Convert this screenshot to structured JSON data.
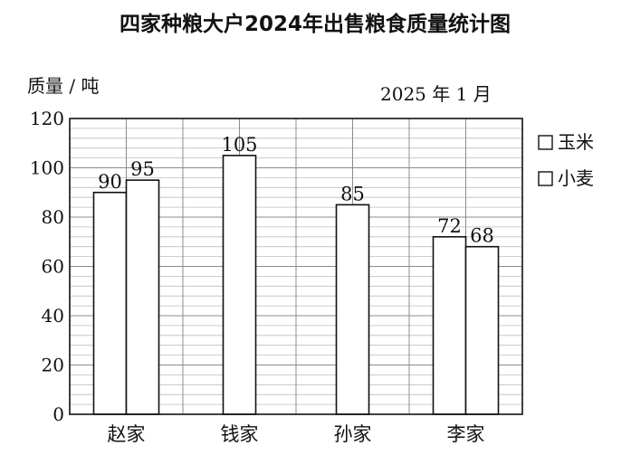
{
  "chart_data": {
    "type": "bar",
    "title": "四家种粮大户2024年出售粮食质量统计图",
    "ylabel": "质量 / 吨",
    "date_note": "2025 年 1 月",
    "categories": [
      "赵家",
      "钱家",
      "孙家",
      "李家"
    ],
    "series": [
      {
        "name": "玉米",
        "values": [
          90,
          null,
          85,
          72
        ]
      },
      {
        "name": "小麦",
        "values": [
          95,
          105,
          null,
          68
        ]
      }
    ],
    "ylim": [
      0,
      120
    ],
    "yticks": [
      0,
      20,
      40,
      60,
      80,
      100,
      120
    ],
    "grid": true,
    "legend_position": "right",
    "bar_fill": "#ffffff",
    "bar_stroke": "#111111"
  }
}
